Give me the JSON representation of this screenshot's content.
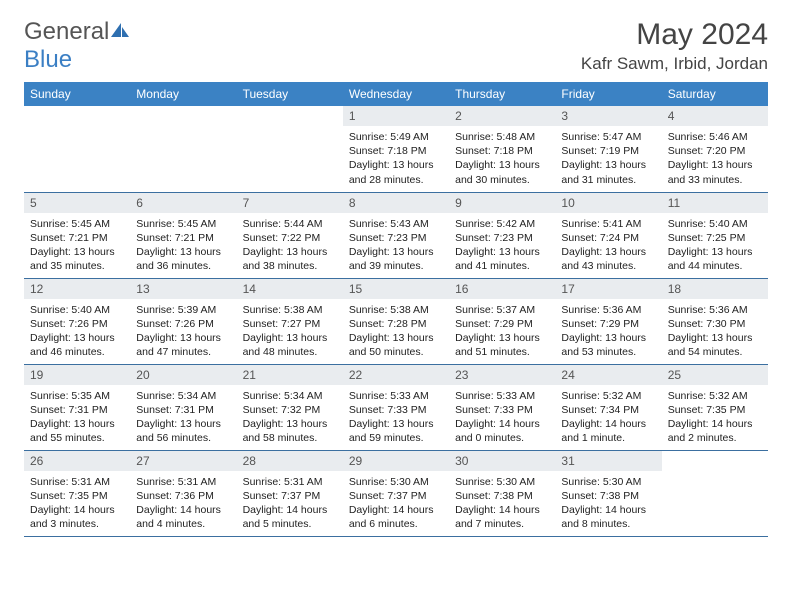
{
  "brand": {
    "part1": "General",
    "part2": "Blue"
  },
  "title": {
    "month": "May 2024",
    "location": "Kafr Sawm, Irbid, Jordan"
  },
  "colors": {
    "header_bg": "#3b82c4",
    "header_fg": "#ffffff",
    "daynum_bg": "#e9ecef",
    "border": "#3b6fa0",
    "text": "#222222",
    "title": "#444444"
  },
  "dayNames": [
    "Sunday",
    "Monday",
    "Tuesday",
    "Wednesday",
    "Thursday",
    "Friday",
    "Saturday"
  ],
  "weeks": [
    [
      null,
      null,
      null,
      {
        "n": "1",
        "sr": "5:49 AM",
        "ss": "7:18 PM",
        "dl": "13 hours and 28 minutes."
      },
      {
        "n": "2",
        "sr": "5:48 AM",
        "ss": "7:18 PM",
        "dl": "13 hours and 30 minutes."
      },
      {
        "n": "3",
        "sr": "5:47 AM",
        "ss": "7:19 PM",
        "dl": "13 hours and 31 minutes."
      },
      {
        "n": "4",
        "sr": "5:46 AM",
        "ss": "7:20 PM",
        "dl": "13 hours and 33 minutes."
      }
    ],
    [
      {
        "n": "5",
        "sr": "5:45 AM",
        "ss": "7:21 PM",
        "dl": "13 hours and 35 minutes."
      },
      {
        "n": "6",
        "sr": "5:45 AM",
        "ss": "7:21 PM",
        "dl": "13 hours and 36 minutes."
      },
      {
        "n": "7",
        "sr": "5:44 AM",
        "ss": "7:22 PM",
        "dl": "13 hours and 38 minutes."
      },
      {
        "n": "8",
        "sr": "5:43 AM",
        "ss": "7:23 PM",
        "dl": "13 hours and 39 minutes."
      },
      {
        "n": "9",
        "sr": "5:42 AM",
        "ss": "7:23 PM",
        "dl": "13 hours and 41 minutes."
      },
      {
        "n": "10",
        "sr": "5:41 AM",
        "ss": "7:24 PM",
        "dl": "13 hours and 43 minutes."
      },
      {
        "n": "11",
        "sr": "5:40 AM",
        "ss": "7:25 PM",
        "dl": "13 hours and 44 minutes."
      }
    ],
    [
      {
        "n": "12",
        "sr": "5:40 AM",
        "ss": "7:26 PM",
        "dl": "13 hours and 46 minutes."
      },
      {
        "n": "13",
        "sr": "5:39 AM",
        "ss": "7:26 PM",
        "dl": "13 hours and 47 minutes."
      },
      {
        "n": "14",
        "sr": "5:38 AM",
        "ss": "7:27 PM",
        "dl": "13 hours and 48 minutes."
      },
      {
        "n": "15",
        "sr": "5:38 AM",
        "ss": "7:28 PM",
        "dl": "13 hours and 50 minutes."
      },
      {
        "n": "16",
        "sr": "5:37 AM",
        "ss": "7:29 PM",
        "dl": "13 hours and 51 minutes."
      },
      {
        "n": "17",
        "sr": "5:36 AM",
        "ss": "7:29 PM",
        "dl": "13 hours and 53 minutes."
      },
      {
        "n": "18",
        "sr": "5:36 AM",
        "ss": "7:30 PM",
        "dl": "13 hours and 54 minutes."
      }
    ],
    [
      {
        "n": "19",
        "sr": "5:35 AM",
        "ss": "7:31 PM",
        "dl": "13 hours and 55 minutes."
      },
      {
        "n": "20",
        "sr": "5:34 AM",
        "ss": "7:31 PM",
        "dl": "13 hours and 56 minutes."
      },
      {
        "n": "21",
        "sr": "5:34 AM",
        "ss": "7:32 PM",
        "dl": "13 hours and 58 minutes."
      },
      {
        "n": "22",
        "sr": "5:33 AM",
        "ss": "7:33 PM",
        "dl": "13 hours and 59 minutes."
      },
      {
        "n": "23",
        "sr": "5:33 AM",
        "ss": "7:33 PM",
        "dl": "14 hours and 0 minutes."
      },
      {
        "n": "24",
        "sr": "5:32 AM",
        "ss": "7:34 PM",
        "dl": "14 hours and 1 minute."
      },
      {
        "n": "25",
        "sr": "5:32 AM",
        "ss": "7:35 PM",
        "dl": "14 hours and 2 minutes."
      }
    ],
    [
      {
        "n": "26",
        "sr": "5:31 AM",
        "ss": "7:35 PM",
        "dl": "14 hours and 3 minutes."
      },
      {
        "n": "27",
        "sr": "5:31 AM",
        "ss": "7:36 PM",
        "dl": "14 hours and 4 minutes."
      },
      {
        "n": "28",
        "sr": "5:31 AM",
        "ss": "7:37 PM",
        "dl": "14 hours and 5 minutes."
      },
      {
        "n": "29",
        "sr": "5:30 AM",
        "ss": "7:37 PM",
        "dl": "14 hours and 6 minutes."
      },
      {
        "n": "30",
        "sr": "5:30 AM",
        "ss": "7:38 PM",
        "dl": "14 hours and 7 minutes."
      },
      {
        "n": "31",
        "sr": "5:30 AM",
        "ss": "7:38 PM",
        "dl": "14 hours and 8 minutes."
      },
      null
    ]
  ],
  "labels": {
    "sunrise": "Sunrise:",
    "sunset": "Sunset:",
    "daylight": "Daylight:"
  }
}
